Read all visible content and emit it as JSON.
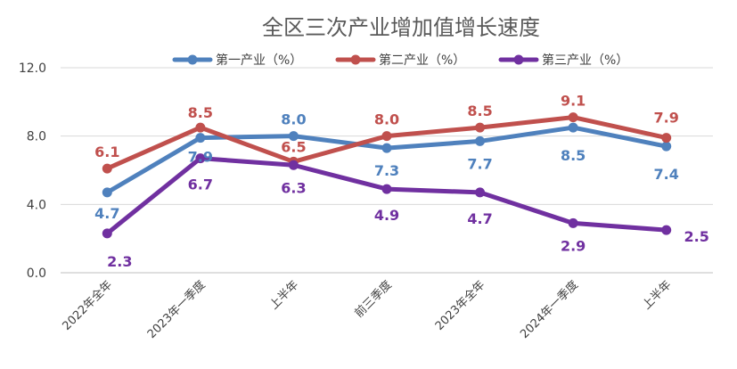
{
  "chart_data": {
    "type": "line",
    "title": "全区三次产业增加值增长速度",
    "categories": [
      "2022年全年",
      "2023年一季度",
      "上半年",
      "前三季度",
      "2023年全年",
      "2024年一季度",
      "上半年"
    ],
    "ylim": [
      0,
      12
    ],
    "yticks": [
      "0.0",
      "4.0",
      "8.0",
      "12.0"
    ],
    "grid": true,
    "legend_position": "top",
    "series": [
      {
        "name": "第一产业（%）",
        "color": "#4f81bd",
        "values": [
          4.7,
          7.9,
          8.0,
          7.3,
          7.7,
          8.5,
          7.4
        ],
        "labels": [
          "4.7",
          "7.9",
          "8.0",
          "7.3",
          "7.7",
          "8.5",
          "7.4"
        ]
      },
      {
        "name": "第二产业（%）",
        "color": "#c0504d",
        "values": [
          6.1,
          8.5,
          6.5,
          8.0,
          8.5,
          9.1,
          7.9
        ],
        "labels": [
          "6.1",
          "8.5",
          "6.5",
          "8.0",
          "8.5",
          "9.1",
          "7.9"
        ]
      },
      {
        "name": "第三产业（%）",
        "color": "#7030a0",
        "values": [
          2.3,
          6.7,
          6.3,
          4.9,
          4.7,
          2.9,
          2.5
        ],
        "labels": [
          "2.3",
          "6.7",
          "6.3",
          "4.9",
          "4.7",
          "2.9",
          "2.5"
        ]
      }
    ]
  }
}
